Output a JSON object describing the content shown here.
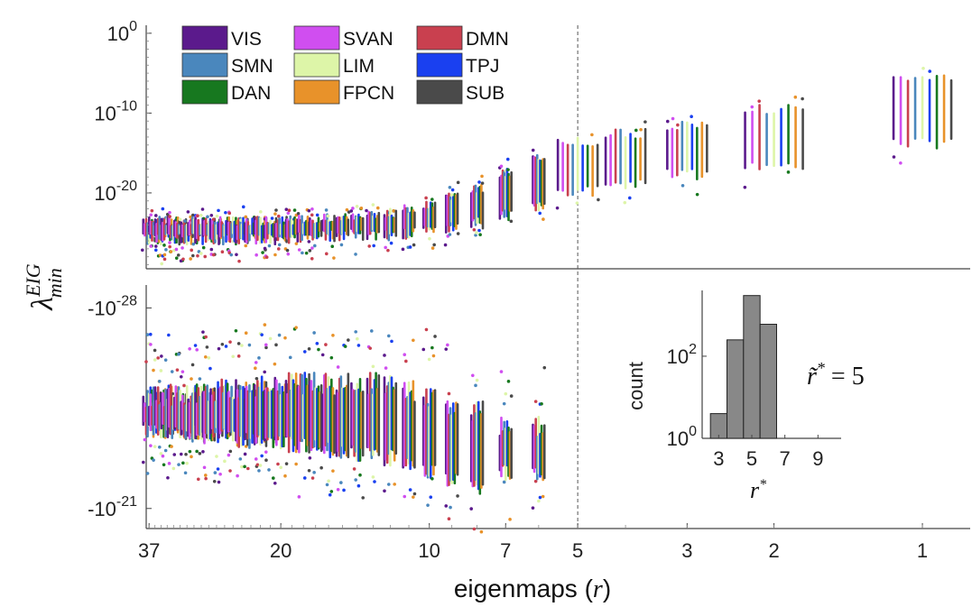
{
  "chart_data": {
    "type": "scatter",
    "xlabel": "eigenmaps",
    "xlabel_symbol": "r",
    "ylabel": "λ",
    "ylabel_sup": "EIG",
    "ylabel_sub": "min",
    "x_scale": "log",
    "x_reversed": true,
    "x_ticks": [
      {
        "value": 37,
        "label": "37"
      },
      {
        "value": 20,
        "label": "20"
      },
      {
        "value": 10,
        "label": "10"
      },
      {
        "value": 7,
        "label": "7"
      },
      {
        "value": 5,
        "label": "5"
      },
      {
        "value": 3,
        "label": "3"
      },
      {
        "value": 2,
        "label": "2"
      },
      {
        "value": 1,
        "label": "1"
      }
    ],
    "x_range": [
      37.5,
      0.8
    ],
    "reference_line_x": 5,
    "legend": [
      {
        "name": "VIS",
        "color": "#5b1a8c"
      },
      {
        "name": "SVAN",
        "color": "#d04ef0"
      },
      {
        "name": "DMN",
        "color": "#c9404f"
      },
      {
        "name": "SMN",
        "color": "#4a87bd"
      },
      {
        "name": "LIM",
        "color": "#ddf5a8"
      },
      {
        "name": "TPJ",
        "color": "#1a40f0"
      },
      {
        "name": "DAN",
        "color": "#17781f"
      },
      {
        "name": "FPCN",
        "color": "#e8922a"
      },
      {
        "name": "SUB",
        "color": "#4a4a4a"
      }
    ],
    "panels": [
      {
        "name": "positive",
        "y_scale": "log",
        "y_ticks": [
          {
            "value": 0,
            "base": "10",
            "exp": "0"
          },
          {
            "value": -10,
            "base": "10",
            "exp": "-10"
          },
          {
            "value": -20,
            "base": "10",
            "exp": "-20"
          }
        ],
        "y_range_log10": [
          -29.5,
          1
        ],
        "column_ranges_log10": [
          {
            "r": 37,
            "lo": -26,
            "hi": -23
          },
          {
            "r": 20,
            "lo": -26,
            "hi": -23
          },
          {
            "r": 15,
            "lo": -25.5,
            "hi": -22.5
          },
          {
            "r": 12,
            "lo": -25.5,
            "hi": -22
          },
          {
            "r": 10,
            "lo": -25,
            "hi": -21
          },
          {
            "r": 8,
            "lo": -24,
            "hi": -19
          },
          {
            "r": 7,
            "lo": -23,
            "hi": -17
          },
          {
            "r": 6,
            "lo": -22,
            "hi": -15
          },
          {
            "r": 5,
            "lo": -20,
            "hi": -13
          },
          {
            "r": 4,
            "lo": -19,
            "hi": -12
          },
          {
            "r": 3,
            "lo": -18,
            "hi": -11
          },
          {
            "r": 2,
            "lo": -17,
            "hi": -9
          },
          {
            "r": 1,
            "lo": -14,
            "hi": -5
          }
        ]
      },
      {
        "name": "negative",
        "y_scale": "symlog-negative",
        "y_ticks": [
          {
            "value": -28,
            "base": "-10",
            "exp": "-28"
          },
          {
            "value": -21,
            "base": "-10",
            "exp": "-21"
          }
        ],
        "y_range_log10": [
          -28.8,
          -20.3
        ],
        "column_ranges_log10": [
          {
            "r": 37,
            "lo": -25,
            "hi": -23.5
          },
          {
            "r": 20,
            "lo": -25.5,
            "hi": -23
          },
          {
            "r": 12,
            "lo": -25.5,
            "hi": -22.5
          },
          {
            "r": 10,
            "lo": -25,
            "hi": -22
          },
          {
            "r": 8,
            "lo": -24.5,
            "hi": -21.5
          },
          {
            "r": 7,
            "lo": -24,
            "hi": -22
          }
        ]
      }
    ],
    "inset": {
      "type": "bar",
      "xlabel": "r",
      "xlabel_sup": "*",
      "ylabel": "count",
      "y_scale": "log",
      "categories": [
        3,
        4,
        5,
        6
      ],
      "values": [
        4,
        250,
        3000,
        600
      ],
      "x_ticks": [
        "3",
        "5",
        "7",
        "9"
      ],
      "y_ticks": [
        {
          "base": "10",
          "exp": "0"
        },
        {
          "base": "10",
          "exp": "2"
        }
      ],
      "y_range": [
        1,
        4000
      ],
      "bar_color": "#888888"
    },
    "annotation": {
      "text_symbol": "r̃",
      "text_sup": "*",
      "text_rest": " = 5"
    }
  }
}
